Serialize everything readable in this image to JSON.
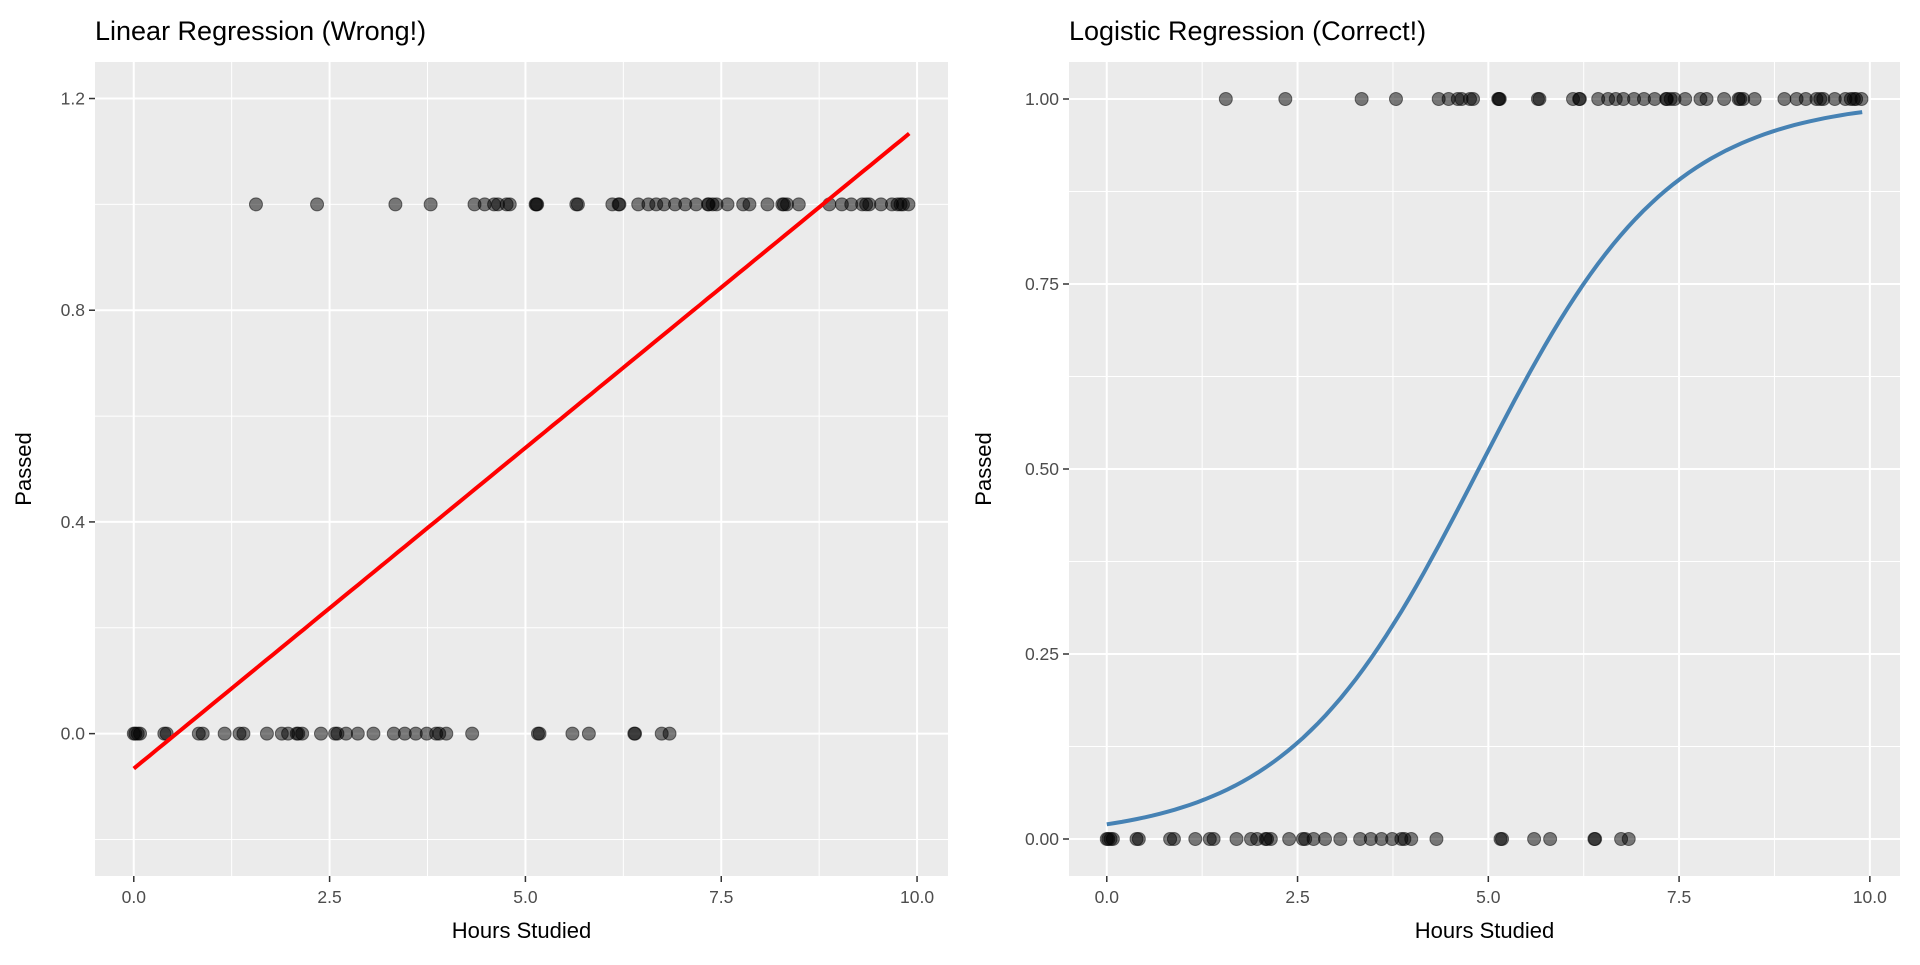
{
  "chart_data": [
    {
      "type": "scatter",
      "title": "Linear Regression (Wrong!)",
      "xlabel": "Hours Studied",
      "ylabel": "Passed",
      "xlim": [
        -0.495,
        10.395
      ],
      "ylim": [
        -0.269,
        1.269
      ],
      "xticks": [
        0,
        2.5,
        5,
        7.5,
        10
      ],
      "xtick_labels": [
        "0.0",
        "2.5",
        "5.0",
        "7.5",
        "10.0"
      ],
      "yticks": [
        0,
        0.4,
        0.8,
        1.2
      ],
      "ytick_labels": [
        "0.0",
        "0.4",
        "0.8",
        "1.2"
      ],
      "yminor": [
        -0.2,
        0.2,
        0.6,
        1.0
      ],
      "grid": true,
      "fit": {
        "kind": "linear",
        "intercept": -0.066,
        "slope": 0.1212,
        "x_range": [
          0,
          9.9
        ],
        "color": "#FF0000"
      }
    },
    {
      "type": "scatter",
      "title": "Logistic Regression (Correct!)",
      "xlabel": "Hours Studied",
      "ylabel": "Passed",
      "xlim": [
        -0.495,
        10.395
      ],
      "ylim": [
        -0.05,
        1.05
      ],
      "xticks": [
        0,
        2.5,
        5,
        7.5,
        10
      ],
      "xtick_labels": [
        "0.0",
        "2.5",
        "5.0",
        "7.5",
        "10.0"
      ],
      "yticks": [
        0,
        0.25,
        0.5,
        0.75,
        1.0
      ],
      "ytick_labels": [
        "0.00",
        "0.25",
        "0.50",
        "0.75",
        "1.00"
      ],
      "yminor": [
        0.125,
        0.375,
        0.625,
        0.875
      ],
      "grid": true,
      "fit": {
        "kind": "logistic",
        "b0": -3.9,
        "b1": 0.8,
        "x_range": [
          0,
          9.9
        ],
        "color": "#4682B4"
      }
    }
  ],
  "points": {
    "passed_1": [
      1.56,
      2.34,
      3.34,
      3.79,
      4.35,
      4.48,
      4.6,
      4.65,
      4.76,
      4.8,
      5.13,
      5.14,
      5.15,
      5.65,
      5.67,
      6.11,
      6.19,
      6.2,
      6.44,
      6.57,
      6.67,
      6.77,
      6.91,
      7.04,
      7.18,
      7.33,
      7.34,
      7.39,
      7.44,
      7.58,
      7.78,
      7.86,
      8.09,
      8.28,
      8.3,
      8.34,
      8.49,
      8.88,
      9.04,
      9.16,
      9.3,
      9.35,
      9.39,
      9.54,
      9.68,
      9.75,
      9.79,
      9.82,
      9.89
    ],
    "passed_0": [
      0.0,
      0.02,
      0.05,
      0.08,
      0.39,
      0.42,
      0.83,
      0.88,
      1.16,
      1.35,
      1.4,
      1.7,
      1.89,
      1.97,
      2.08,
      2.1,
      2.15,
      2.39,
      2.57,
      2.6,
      2.71,
      2.86,
      3.06,
      3.32,
      3.46,
      3.6,
      3.74,
      3.86,
      3.9,
      3.99,
      4.32,
      5.16,
      5.18,
      5.6,
      5.81,
      6.39,
      6.4,
      6.74,
      6.84
    ]
  }
}
